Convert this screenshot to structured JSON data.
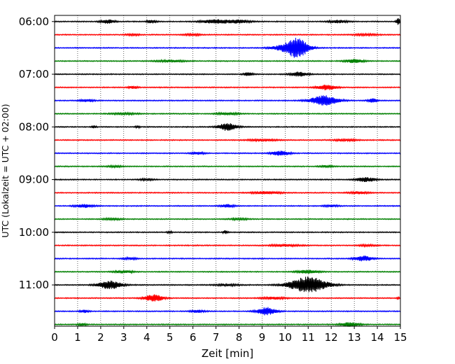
{
  "chart_data": {
    "type": "line",
    "title": "",
    "xlabel": "Zeit  [min]",
    "ylabel": "UTC (Lokalzeit = UTC + 02:00)",
    "xlim": [
      0,
      15
    ],
    "x_ticks": [
      0,
      1,
      2,
      3,
      4,
      5,
      6,
      7,
      8,
      9,
      10,
      11,
      12,
      13,
      14,
      15
    ],
    "x_tick_labels": [
      "0",
      "1",
      "2",
      "3",
      "4",
      "5",
      "6",
      "7",
      "8",
      "9",
      "10",
      "11",
      "12",
      "13",
      "14",
      "15"
    ],
    "y_range_utc": [
      "05:53",
      "11:47"
    ],
    "y_ticks": [
      "06:00",
      "07:00",
      "08:00",
      "09:00",
      "10:00",
      "11:00"
    ],
    "grid": {
      "x": "dotted vertical",
      "y": "off"
    },
    "trace_interval_minutes": 15,
    "trace_colors": [
      "#000000",
      "#ff0000",
      "#0000ff",
      "#008000"
    ],
    "traces": [
      {
        "start": "06:00",
        "color": "#000000",
        "bursts": [
          {
            "t": 2.3,
            "amp": 0.55,
            "w": 0.3
          },
          {
            "t": 4.2,
            "amp": 0.5,
            "w": 0.2
          },
          {
            "t": 7.0,
            "amp": 0.6,
            "w": 0.6
          },
          {
            "t": 8.0,
            "amp": 0.5,
            "w": 0.5
          },
          {
            "t": 12.3,
            "amp": 0.45,
            "w": 0.4
          },
          {
            "t": 14.9,
            "amp": 1.1,
            "w": 0.08
          }
        ]
      },
      {
        "start": "06:15",
        "color": "#ff0000",
        "bursts": [
          {
            "t": 3.4,
            "amp": 0.25,
            "w": 0.3
          },
          {
            "t": 6.0,
            "amp": 0.25,
            "w": 0.4
          },
          {
            "t": 13.5,
            "amp": 0.25,
            "w": 0.5
          }
        ]
      },
      {
        "start": "06:30",
        "color": "#0000ff",
        "bursts": [
          {
            "t": 10.5,
            "amp": 3.3,
            "w": 0.5
          },
          {
            "t": 9.7,
            "amp": 0.5,
            "w": 0.4
          }
        ]
      },
      {
        "start": "06:45",
        "color": "#008000",
        "bursts": [
          {
            "t": 5.0,
            "amp": 0.3,
            "w": 0.6
          },
          {
            "t": 13.0,
            "amp": 0.6,
            "w": 0.4
          }
        ]
      },
      {
        "start": "07:00",
        "color": "#000000",
        "bursts": [
          {
            "t": 8.4,
            "amp": 0.5,
            "w": 0.2
          },
          {
            "t": 10.6,
            "amp": 0.7,
            "w": 0.4
          }
        ]
      },
      {
        "start": "07:15",
        "color": "#ff0000",
        "bursts": [
          {
            "t": 3.4,
            "amp": 0.4,
            "w": 0.2
          },
          {
            "t": 11.8,
            "amp": 0.8,
            "w": 0.4
          }
        ]
      },
      {
        "start": "07:30",
        "color": "#0000ff",
        "bursts": [
          {
            "t": 1.4,
            "amp": 0.4,
            "w": 0.3
          },
          {
            "t": 11.7,
            "amp": 1.6,
            "w": 0.6
          },
          {
            "t": 13.8,
            "amp": 0.6,
            "w": 0.2
          }
        ]
      },
      {
        "start": "07:45",
        "color": "#008000",
        "bursts": [
          {
            "t": 3.0,
            "amp": 0.25,
            "w": 0.6
          },
          {
            "t": 7.5,
            "amp": 0.3,
            "w": 0.5
          }
        ]
      },
      {
        "start": "08:00",
        "color": "#000000",
        "bursts": [
          {
            "t": 7.5,
            "amp": 1.2,
            "w": 0.4
          },
          {
            "t": 1.7,
            "amp": 0.4,
            "w": 0.1
          },
          {
            "t": 3.6,
            "amp": 0.3,
            "w": 0.1
          }
        ]
      },
      {
        "start": "08:15",
        "color": "#ff0000",
        "bursts": [
          {
            "t": 9.0,
            "amp": 0.3,
            "w": 0.6
          },
          {
            "t": 12.6,
            "amp": 0.3,
            "w": 0.5
          }
        ]
      },
      {
        "start": "08:30",
        "color": "#0000ff",
        "bursts": [
          {
            "t": 9.8,
            "amp": 0.7,
            "w": 0.4
          },
          {
            "t": 6.2,
            "amp": 0.35,
            "w": 0.3
          }
        ]
      },
      {
        "start": "08:45",
        "color": "#008000",
        "bursts": [
          {
            "t": 2.6,
            "amp": 0.3,
            "w": 0.3
          },
          {
            "t": 11.8,
            "amp": 0.3,
            "w": 0.3
          }
        ]
      },
      {
        "start": "09:00",
        "color": "#000000",
        "bursts": [
          {
            "t": 13.5,
            "amp": 0.7,
            "w": 0.4
          },
          {
            "t": 4.0,
            "amp": 0.3,
            "w": 0.3
          }
        ]
      },
      {
        "start": "09:15",
        "color": "#ff0000",
        "bursts": [
          {
            "t": 9.2,
            "amp": 0.4,
            "w": 0.6
          },
          {
            "t": 13.2,
            "amp": 0.35,
            "w": 0.4
          }
        ]
      },
      {
        "start": "09:30",
        "color": "#0000ff",
        "bursts": [
          {
            "t": 1.3,
            "amp": 0.5,
            "w": 0.4
          },
          {
            "t": 7.5,
            "amp": 0.45,
            "w": 0.3
          },
          {
            "t": 12.0,
            "amp": 0.3,
            "w": 0.3
          }
        ]
      },
      {
        "start": "09:45",
        "color": "#008000",
        "bursts": [
          {
            "t": 2.5,
            "amp": 0.25,
            "w": 0.4
          },
          {
            "t": 8.0,
            "amp": 0.25,
            "w": 0.4
          }
        ]
      },
      {
        "start": "10:00",
        "color": "#000000",
        "bursts": [
          {
            "t": 7.4,
            "amp": 0.5,
            "w": 0.1
          },
          {
            "t": 5.0,
            "amp": 0.3,
            "w": 0.1
          }
        ]
      },
      {
        "start": "10:15",
        "color": "#ff0000",
        "bursts": [
          {
            "t": 10.0,
            "amp": 0.35,
            "w": 0.6
          },
          {
            "t": 13.6,
            "amp": 0.25,
            "w": 0.4
          }
        ]
      },
      {
        "start": "10:30",
        "color": "#0000ff",
        "bursts": [
          {
            "t": 13.4,
            "amp": 0.8,
            "w": 0.4
          },
          {
            "t": 3.3,
            "amp": 0.3,
            "w": 0.3
          }
        ]
      },
      {
        "start": "10:45",
        "color": "#008000",
        "bursts": [
          {
            "t": 3.0,
            "amp": 0.4,
            "w": 0.4
          },
          {
            "t": 11.0,
            "amp": 0.5,
            "w": 0.5
          }
        ]
      },
      {
        "start": "11:00",
        "color": "#000000",
        "bursts": [
          {
            "t": 2.4,
            "amp": 1.3,
            "w": 0.5
          },
          {
            "t": 11.0,
            "amp": 2.5,
            "w": 0.8
          },
          {
            "t": 7.5,
            "amp": 0.3,
            "w": 0.5
          }
        ]
      },
      {
        "start": "11:15",
        "color": "#ff0000",
        "bursts": [
          {
            "t": 4.3,
            "amp": 1.1,
            "w": 0.4
          },
          {
            "t": 9.5,
            "amp": 0.35,
            "w": 0.5
          },
          {
            "t": 14.9,
            "amp": 0.5,
            "w": 0.05
          }
        ]
      },
      {
        "start": "11:30",
        "color": "#0000ff",
        "bursts": [
          {
            "t": 9.2,
            "amp": 1.2,
            "w": 0.4
          },
          {
            "t": 1.3,
            "amp": 0.45,
            "w": 0.2
          },
          {
            "t": 6.2,
            "amp": 0.4,
            "w": 0.3
          }
        ]
      },
      {
        "start": "11:45",
        "color": "#008000",
        "bursts": [
          {
            "t": 12.8,
            "amp": 0.6,
            "w": 0.4
          },
          {
            "t": 1.2,
            "amp": 0.3,
            "w": 0.2
          }
        ]
      }
    ]
  }
}
